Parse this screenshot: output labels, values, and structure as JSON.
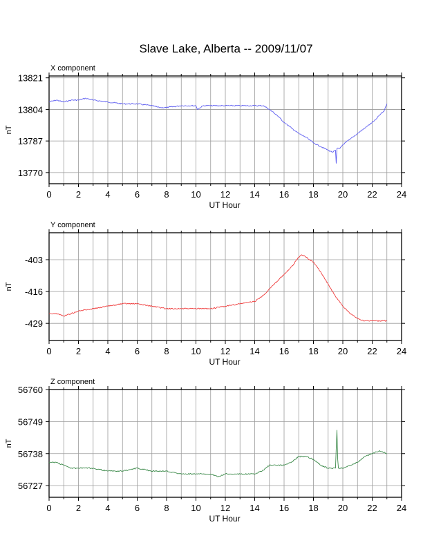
{
  "page": {
    "title": "Slave Lake, Alberta -- 2009/11/07"
  },
  "chart_data": [
    {
      "type": "line",
      "subtitle": "X component",
      "xlabel": "UT Hour",
      "ylabel": "nT",
      "xlim": [
        0,
        24
      ],
      "ylim": [
        13764,
        13822
      ],
      "x_ticks": [
        0,
        2,
        4,
        6,
        8,
        10,
        12,
        14,
        16,
        18,
        20,
        22,
        24
      ],
      "x_minor_step": 1,
      "y_ticks": [
        13770,
        13787,
        13804,
        13821
      ],
      "grid": true,
      "color": "#5b5bf0",
      "series": [
        {
          "x": [
            0,
            0.5,
            1,
            1.5,
            2,
            2.5,
            3,
            4,
            5,
            6,
            7,
            7.5,
            8,
            9,
            10,
            10.1,
            10.5,
            11,
            12,
            13,
            14,
            14.6,
            15,
            15.5,
            16,
            16.5,
            17,
            17.5,
            18,
            18.5,
            19,
            19.3,
            19.5,
            19.55,
            19.6,
            19.8,
            20,
            20.5,
            21,
            21.5,
            22,
            22.3,
            22.5,
            22.8,
            23
          ],
          "y": [
            13808,
            13809,
            13808,
            13809,
            13809,
            13810,
            13809,
            13808,
            13807,
            13807,
            13806,
            13805,
            13805,
            13806,
            13806,
            13804,
            13806,
            13806,
            13806,
            13806,
            13806,
            13806,
            13804,
            13801,
            13797,
            13794,
            13791,
            13789,
            13786,
            13784,
            13782,
            13781,
            13782,
            13775,
            13783,
            13783,
            13785,
            13788,
            13791,
            13794,
            13797,
            13799,
            13801,
            13803,
            13807
          ]
        }
      ]
    },
    {
      "type": "line",
      "subtitle": "Y component",
      "xlabel": "UT Hour",
      "ylabel": "nT",
      "xlim": [
        0,
        24
      ],
      "ylim": [
        -436,
        -392
      ],
      "x_ticks": [
        0,
        2,
        4,
        6,
        8,
        10,
        12,
        14,
        16,
        18,
        20,
        22,
        24
      ],
      "x_minor_step": 1,
      "y_ticks": [
        -403,
        -416,
        -429
      ],
      "grid": true,
      "color": "#ef3b3b",
      "series": [
        {
          "x": [
            0,
            0.5,
            1,
            1.5,
            2,
            3,
            4,
            5,
            6,
            7,
            8,
            9,
            10,
            11,
            12,
            13,
            14,
            14.5,
            15,
            15.5,
            16,
            16.5,
            17,
            17.2,
            17.5,
            18,
            18.5,
            19,
            19.5,
            20,
            20.5,
            21,
            21.5,
            22,
            22.5,
            23
          ],
          "y": [
            -425,
            -425,
            -426,
            -425,
            -424,
            -423,
            -422,
            -421,
            -421,
            -422,
            -423,
            -423,
            -423,
            -423,
            -422,
            -421,
            -420,
            -418,
            -415,
            -412,
            -409,
            -406,
            -402,
            -401,
            -402,
            -404,
            -408,
            -413,
            -418,
            -422,
            -425,
            -427,
            -428,
            -428,
            -428,
            -428
          ]
        }
      ]
    },
    {
      "type": "line",
      "subtitle": "Z component",
      "xlabel": "UT Hour",
      "ylabel": "nT",
      "xlim": [
        0,
        24
      ],
      "ylim": [
        56723,
        56760
      ],
      "x_ticks": [
        0,
        2,
        4,
        6,
        8,
        10,
        12,
        14,
        16,
        18,
        20,
        22,
        24
      ],
      "x_minor_step": 1,
      "y_ticks": [
        56727,
        56738,
        56749,
        56760
      ],
      "grid": true,
      "color": "#3c8a4a",
      "series": [
        {
          "x": [
            0,
            0.5,
            1,
            1.5,
            2,
            3,
            4,
            5,
            6,
            7,
            8,
            9,
            10,
            11,
            11.5,
            12,
            13,
            14,
            14.5,
            15,
            15.5,
            16,
            16.5,
            17,
            17.5,
            18,
            18.5,
            19,
            19.5,
            19.6,
            19.65,
            19.7,
            20,
            20.5,
            21,
            21.5,
            22,
            22.5,
            23
          ],
          "y": [
            56735,
            56735,
            56734,
            56733,
            56733,
            56733,
            56732,
            56732,
            56733,
            56732,
            56732,
            56731,
            56731,
            56731,
            56730,
            56731,
            56731,
            56731,
            56732,
            56734,
            56734,
            56734,
            56735,
            56737,
            56737,
            56736,
            56734,
            56733,
            56733,
            56746,
            56736,
            56733,
            56733,
            56734,
            56735,
            56737,
            56738,
            56739,
            56738
          ]
        }
      ]
    }
  ]
}
